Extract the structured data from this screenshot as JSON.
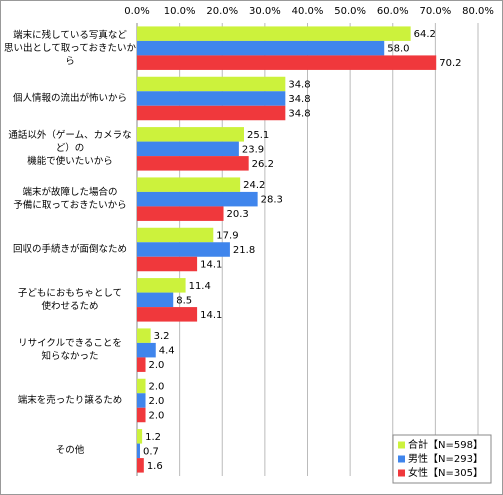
{
  "chart_data": {
    "type": "hbar",
    "categories": [
      "端末に残している写真など\n思い出として取っておきたいから",
      "個人情報の流出が怖いから",
      "通話以外（ゲーム、カメラなど）の\n機能で使いたいから",
      "端末が故障した場合の\n予備に取っておきたいから",
      "回収の手続きが面倒なため",
      "子どもにおもちゃとして\n使わせるため",
      "リサイクルできることを\n知らなかった",
      "端末を売ったり譲るため",
      "その他"
    ],
    "series": [
      {
        "name": "合計【N=598】",
        "color": "#ccf23c",
        "values": [
          64.2,
          34.8,
          25.1,
          24.2,
          17.9,
          11.4,
          3.2,
          2.0,
          1.2
        ],
        "value_labels": [
          "64.2",
          "34.8",
          "25.1",
          "24.2",
          "17.9",
          "11.4",
          "3.2",
          "2.0",
          "1.2"
        ]
      },
      {
        "name": "男性【N=293】",
        "color": "#3f85ec",
        "values": [
          58.0,
          34.8,
          23.9,
          28.3,
          21.8,
          8.5,
          4.4,
          2.0,
          0.7
        ],
        "value_labels": [
          "58.0",
          "34.8",
          "23.9",
          "28.3",
          "21.8",
          "8.5",
          "4.4",
          "2.0",
          "0.7"
        ]
      },
      {
        "name": "女性【N=305】",
        "color": "#f0383c",
        "values": [
          70.2,
          34.8,
          26.2,
          20.3,
          14.1,
          14.1,
          2.0,
          2.0,
          1.6
        ],
        "value_labels": [
          "70.2",
          "34.8",
          "26.2",
          "20.3",
          "14.1",
          "14.1",
          "2.0",
          "2.0",
          "1.6"
        ]
      }
    ],
    "xlim": [
      0,
      80
    ],
    "xticks": [
      {
        "value": 0,
        "label": "0.0%"
      },
      {
        "value": 10,
        "label": "10.0%"
      },
      {
        "value": 20,
        "label": "20.0%"
      },
      {
        "value": 30,
        "label": "30.0%"
      },
      {
        "value": 40,
        "label": "40.0%"
      },
      {
        "value": 50,
        "label": "50.0%"
      },
      {
        "value": 60,
        "label": "60.0%"
      },
      {
        "value": 70,
        "label": "70.0%"
      },
      {
        "value": 80,
        "label": "80.0%"
      }
    ],
    "grid": true,
    "legend": "bottom-right"
  }
}
